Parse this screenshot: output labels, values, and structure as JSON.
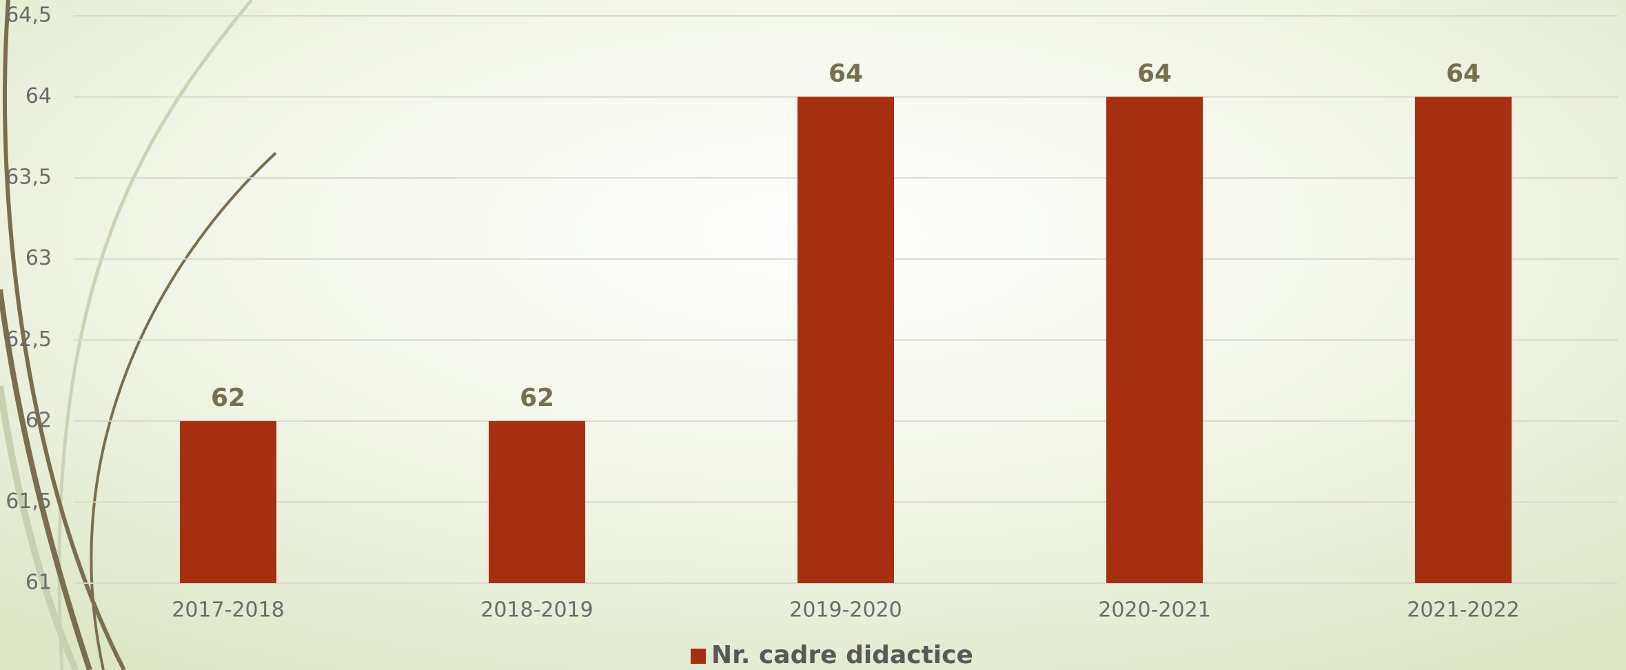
{
  "chart_data": {
    "type": "bar",
    "categories": [
      "2017-2018",
      "2018-2019",
      "2019-2020",
      "2020-2021",
      "2021-2022"
    ],
    "series": [
      {
        "name": "Nr. cadre didactice",
        "color": "#a52f10",
        "values": [
          62,
          62,
          64,
          64,
          64
        ]
      }
    ],
    "ylim": [
      61,
      64.5
    ],
    "yticks": [
      61,
      {
        "value": 61.5,
        "label": "61,5"
      },
      62,
      {
        "value": 62.5,
        "label": "62,5"
      },
      63,
      {
        "value": 63.5,
        "label": "63,5"
      },
      64,
      {
        "value": 64.5,
        "label": "64,5"
      }
    ],
    "grid": true,
    "legend": "bottom"
  }
}
